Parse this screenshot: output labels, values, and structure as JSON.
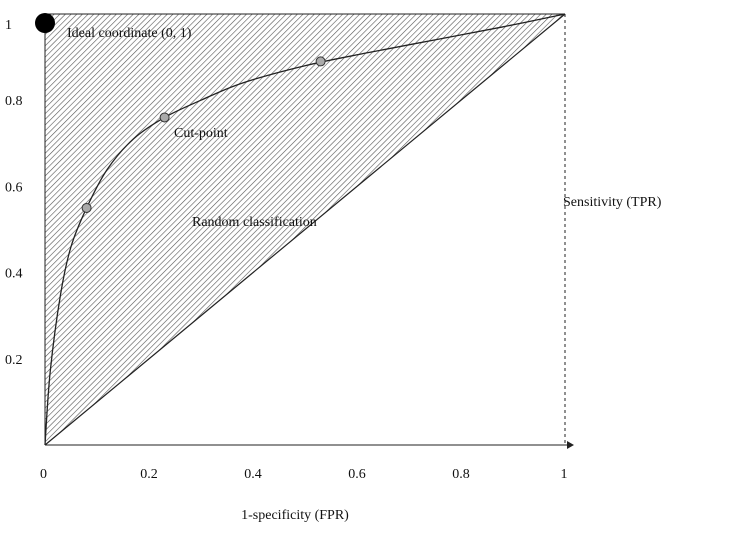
{
  "chart_data": {
    "type": "line",
    "title": "",
    "xlabel": "1-specificity (FPR)",
    "ylabel": "Sensitivity (TPR)",
    "xlim": [
      0,
      1
    ],
    "ylim": [
      0,
      1
    ],
    "x_ticks": [
      {
        "value": 0,
        "label": "0"
      },
      {
        "value": 0.2,
        "label": "0.2"
      },
      {
        "value": 0.4,
        "label": "0.4"
      },
      {
        "value": 0.6,
        "label": "0.6"
      },
      {
        "value": 0.8,
        "label": "0.8"
      },
      {
        "value": 1,
        "label": "1"
      }
    ],
    "y_ticks": [
      {
        "value": 0.2,
        "label": "0.2"
      },
      {
        "value": 0.4,
        "label": "0.4"
      },
      {
        "value": 0.6,
        "label": "0.6"
      },
      {
        "value": 0.8,
        "label": "0.8"
      },
      {
        "value": 1,
        "label": "1"
      }
    ],
    "series": [
      {
        "values_xy": [
          [
            0,
            0
          ],
          [
            0.01,
            0.17
          ],
          [
            0.03,
            0.35
          ],
          [
            0.05,
            0.46
          ],
          [
            0.08,
            0.55
          ],
          [
            0.12,
            0.64
          ],
          [
            0.17,
            0.71
          ],
          [
            0.23,
            0.76
          ],
          [
            0.3,
            0.8
          ],
          [
            0.38,
            0.84
          ],
          [
            0.5,
            0.88
          ],
          [
            0.62,
            0.91
          ],
          [
            0.75,
            0.94
          ],
          [
            0.88,
            0.97
          ],
          [
            1,
            1
          ]
        ]
      },
      {
        "values_xy": [
          [
            0,
            0
          ],
          [
            1,
            1
          ]
        ]
      }
    ],
    "cut_points": [
      [
        0.08,
        0.55
      ],
      [
        0.23,
        0.76
      ],
      [
        0.53,
        0.89
      ]
    ],
    "ideal_point": [
      0,
      1
    ],
    "annotations": {
      "ideal": "Ideal coordinate (0, 1)",
      "cut_point": "Cut-point",
      "random": "Random classification"
    },
    "colors": {
      "line": "#222222",
      "hatch": "#555555",
      "marker_fill": "#aaaaaa",
      "ideal_marker": "#000000"
    },
    "grid": false,
    "shaded_area_hatched": true
  }
}
